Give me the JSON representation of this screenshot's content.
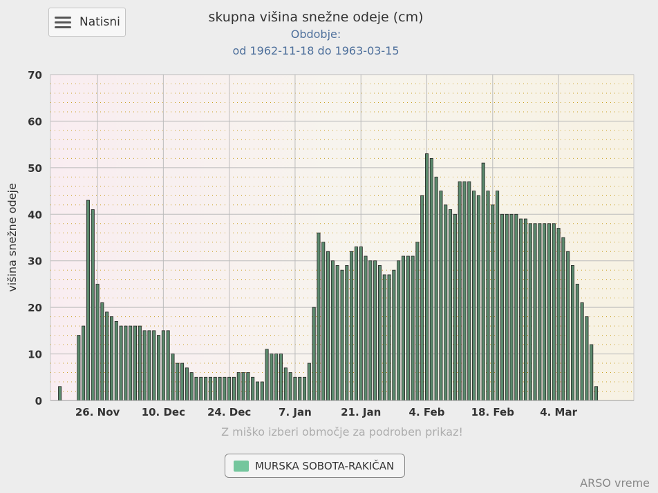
{
  "menu": {
    "icon": "hamburger-menu-icon",
    "label": "Natisni"
  },
  "hint": "Z miško izberi območje za podroben prikaz!",
  "credits": "ARSO vreme",
  "colors": {
    "bar": "#5b8a6d",
    "bar_stroke": "#222",
    "legend": "#74c69d",
    "grid": "#bbb",
    "dot": "#c9a020"
  },
  "chart_data": {
    "type": "bar",
    "title": "skupna višina snežne odeje (cm)",
    "subtitle_1": "Obdobje:",
    "subtitle_2": "od 1962-11-18 do 1963-03-15",
    "ylabel": "višina snežne odeje",
    "xlabel": "",
    "ylim": [
      0,
      70
    ],
    "yticks": [
      0,
      10,
      20,
      30,
      40,
      50,
      60,
      70
    ],
    "xlim": [
      "1962-11-16",
      "1963-03-20"
    ],
    "xticks": [
      {
        "date": "1962-11-26",
        "label": "26. Nov"
      },
      {
        "date": "1962-12-10",
        "label": "10. Dec"
      },
      {
        "date": "1962-12-24",
        "label": "24. Dec"
      },
      {
        "date": "1963-01-07",
        "label": "7. Jan"
      },
      {
        "date": "1963-01-21",
        "label": "21. Jan"
      },
      {
        "date": "1963-02-04",
        "label": "4. Feb"
      },
      {
        "date": "1963-02-18",
        "label": "18. Feb"
      },
      {
        "date": "1963-03-04",
        "label": "4. Mar"
      }
    ],
    "grid": true,
    "start_date": "1962-11-18",
    "series": [
      {
        "name": "MURSKA SOBOTA-RAKIČAN",
        "values": [
          3,
          0,
          0,
          0,
          14,
          16,
          43,
          41,
          25,
          21,
          19,
          18,
          17,
          16,
          16,
          16,
          16,
          16,
          15,
          15,
          15,
          14,
          15,
          15,
          10,
          8,
          8,
          7,
          6,
          5,
          5,
          5,
          5,
          5,
          5,
          5,
          5,
          5,
          6,
          6,
          6,
          5,
          4,
          4,
          11,
          10,
          10,
          10,
          7,
          6,
          5,
          5,
          5,
          8,
          20,
          36,
          34,
          32,
          30,
          29,
          28,
          29,
          32,
          33,
          33,
          31,
          30,
          30,
          29,
          27,
          27,
          28,
          30,
          31,
          31,
          31,
          34,
          44,
          53,
          52,
          48,
          45,
          42,
          41,
          40,
          47,
          47,
          47,
          45,
          44,
          51,
          45,
          42,
          45,
          40,
          40,
          40,
          40,
          39,
          39,
          38,
          38,
          38,
          38,
          38,
          38,
          37,
          35,
          32,
          29,
          25,
          21,
          18,
          12,
          3
        ]
      }
    ]
  }
}
